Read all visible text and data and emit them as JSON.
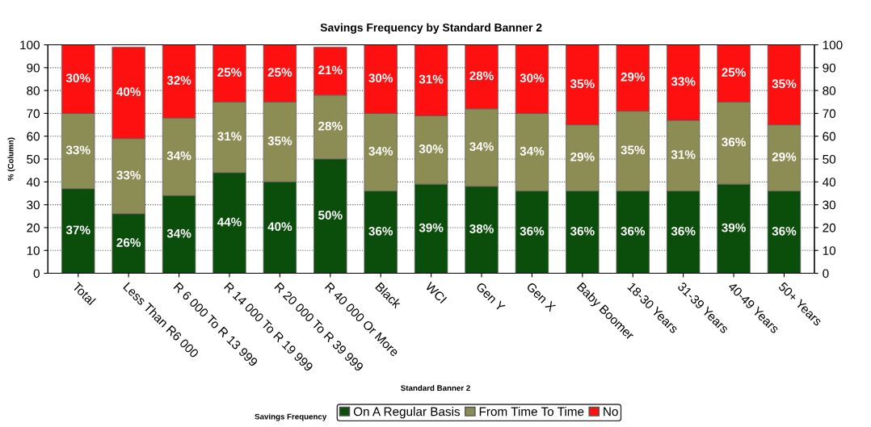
{
  "chart_data": {
    "type": "bar",
    "title": "Savings Frequency by Standard Banner 2",
    "xlabel": "Standard Banner 2",
    "ylabel": "% (Column)",
    "legend_title": "Savings Frequency",
    "categories": [
      "Total",
      "Less Than R6 000",
      "R 6 000 To R 13 999",
      "R 14 000 To R 19 999",
      "R 20 000 To R 39 999",
      "R 40 000 Or More",
      "Black",
      "WCI",
      "Gen Y",
      "Gen X",
      "Baby Boomer",
      "18-30 Years",
      "31-39 Years",
      "40-49 Years",
      "50+ Years"
    ],
    "series": [
      {
        "name": "On A Regular Basis",
        "color": "#0b4d0b",
        "values": [
          37,
          26,
          34,
          44,
          40,
          50,
          36,
          39,
          38,
          36,
          36,
          36,
          36,
          39,
          36
        ],
        "value_labels": [
          "37%",
          "26%",
          "34%",
          "44%",
          "40%",
          "50%",
          "36%",
          "39%",
          "38%",
          "36%",
          "36%",
          "36%",
          "36%",
          "39%",
          "36%"
        ]
      },
      {
        "name": "From Time To Time",
        "color": "#8c8c55",
        "values": [
          33,
          33,
          34,
          31,
          35,
          28,
          34,
          30,
          34,
          34,
          29,
          35,
          31,
          36,
          29
        ],
        "value_labels": [
          "33%",
          "33%",
          "34%",
          "31%",
          "35%",
          "28%",
          "34%",
          "30%",
          "34%",
          "34%",
          "29%",
          "35%",
          "31%",
          "36%",
          "29%"
        ]
      },
      {
        "name": "No",
        "color": "#ff1010",
        "values": [
          30,
          40,
          32,
          25,
          25,
          21,
          30,
          31,
          28,
          30,
          35,
          29,
          33,
          25,
          35
        ],
        "value_labels": [
          "30%",
          "40%",
          "32%",
          "25%",
          "25%",
          "21%",
          "30%",
          "31%",
          "28%",
          "30%",
          "35%",
          "29%",
          "33%",
          "25%",
          "35%"
        ]
      }
    ],
    "stacked": true,
    "ylim": [
      0,
      100
    ],
    "yticks": [
      0,
      10,
      20,
      30,
      40,
      50,
      60,
      70,
      80,
      90,
      100
    ],
    "y2lim": [
      0,
      100
    ],
    "y2ticks": [
      0,
      10,
      20,
      30,
      40,
      50,
      60,
      70,
      80,
      90,
      100
    ],
    "grid": "y",
    "legend": "bottom"
  }
}
